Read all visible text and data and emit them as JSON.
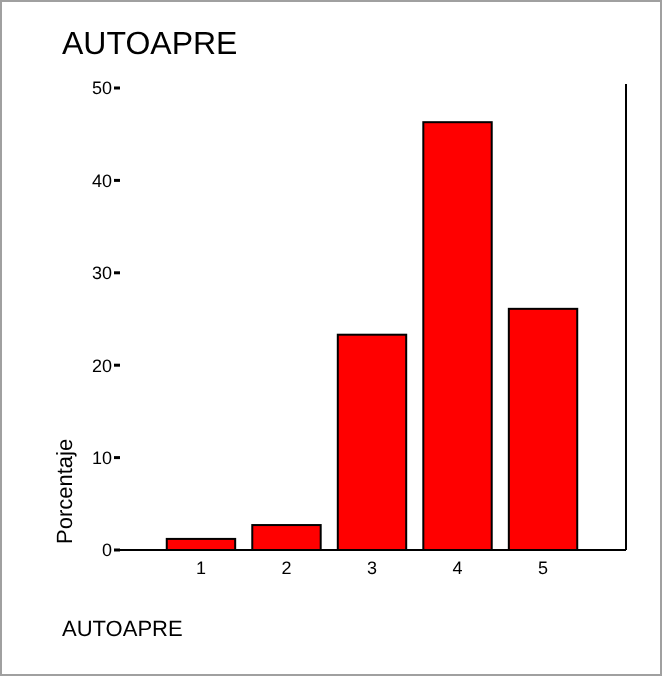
{
  "chart_data": {
    "type": "bar",
    "title": "AUTOAPRE",
    "xlabel": "AUTOAPRE",
    "ylabel": "Porcentaje",
    "categories": [
      "1",
      "2",
      "3",
      "4",
      "5"
    ],
    "values": [
      1.2,
      2.7,
      23.3,
      46.3,
      26.1
    ],
    "color": "#ff0000",
    "ylim": [
      0,
      50
    ],
    "yticks": [
      0,
      10,
      20,
      30,
      40,
      50
    ],
    "grid": false
  }
}
